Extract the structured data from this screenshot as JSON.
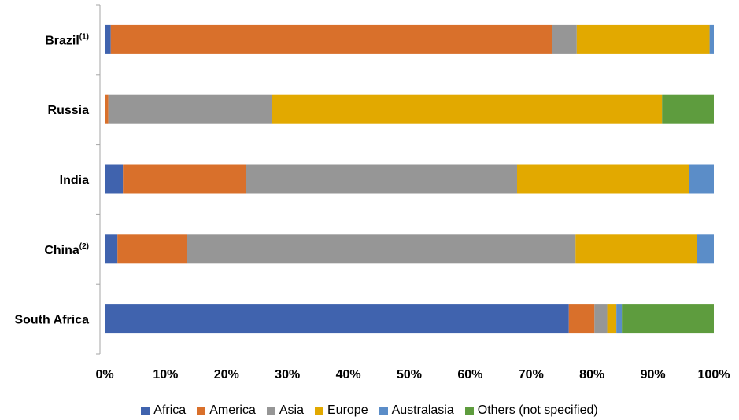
{
  "chart_data": {
    "type": "bar",
    "orientation": "horizontal",
    "stacked": "percent",
    "categories": [
      "Brazil",
      "Russia",
      "India",
      "China",
      "South Africa"
    ],
    "category_superscripts": [
      "(1)",
      "",
      "",
      "(2)",
      ""
    ],
    "series": [
      {
        "name": "Africa",
        "color": "#4063AE",
        "values": [
          1.0,
          0.0,
          3.0,
          2.1,
          76.2
        ]
      },
      {
        "name": "America",
        "color": "#D9702B",
        "values": [
          72.5,
          0.6,
          20.2,
          11.4,
          4.2
        ]
      },
      {
        "name": "Asia",
        "color": "#969696",
        "values": [
          4.0,
          26.9,
          44.5,
          63.8,
          2.1
        ]
      },
      {
        "name": "Europe",
        "color": "#E2A900",
        "values": [
          21.8,
          64.0,
          28.2,
          19.9,
          1.5
        ]
      },
      {
        "name": "Australasia",
        "color": "#5B8DC8",
        "values": [
          0.7,
          0.0,
          4.1,
          2.8,
          0.9
        ]
      },
      {
        "name": "Others (not specified)",
        "color": "#5E9C3E",
        "values": [
          0.0,
          8.5,
          0.0,
          0.0,
          15.1
        ]
      }
    ],
    "xlim": [
      0,
      100
    ],
    "x_ticks": [
      "0%",
      "10%",
      "20%",
      "30%",
      "40%",
      "50%",
      "60%",
      "70%",
      "80%",
      "90%",
      "100%"
    ],
    "title": "",
    "xlabel": "",
    "ylabel": "",
    "grid": false,
    "legend_position": "bottom"
  }
}
